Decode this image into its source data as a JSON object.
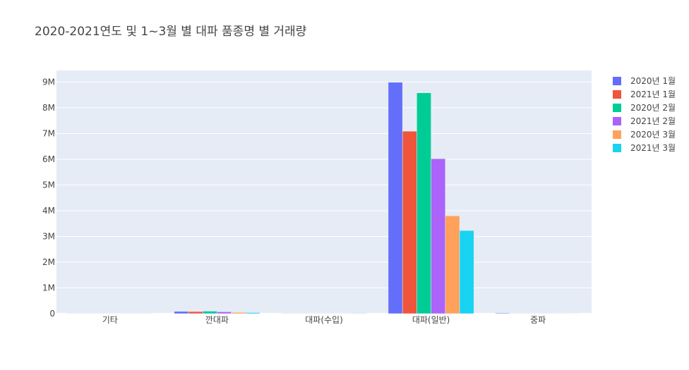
{
  "chart_data": {
    "type": "bar",
    "title": "2020-2021연도 및 1~3월 별 대파 품종명 별 거래량",
    "xlabel": "",
    "ylabel": "",
    "categories": [
      "기타",
      "깐대파",
      "대파(수입)",
      "대파(일반)",
      "중파"
    ],
    "ylim": [
      0,
      9450000
    ],
    "yticks": [
      0,
      1000000,
      2000000,
      3000000,
      4000000,
      5000000,
      6000000,
      7000000,
      8000000,
      9000000
    ],
    "ytick_labels": [
      "0",
      "1M",
      "2M",
      "3M",
      "4M",
      "5M",
      "6M",
      "7M",
      "8M",
      "9M"
    ],
    "grid": true,
    "legend_position": "right",
    "series": [
      {
        "name": "2020년 1월",
        "color": "#636efa",
        "values": [
          12000,
          85000,
          5000,
          8990000,
          25000
        ]
      },
      {
        "name": "2021년 1월",
        "color": "#ef553b",
        "values": [
          8000,
          80000,
          4000,
          7090000,
          5000
        ]
      },
      {
        "name": "2020년 2월",
        "color": "#00cc96",
        "values": [
          10000,
          95000,
          3000,
          8580000,
          6000
        ]
      },
      {
        "name": "2021년 2월",
        "color": "#ab63fa",
        "values": [
          6000,
          70000,
          2000,
          6020000,
          4000
        ]
      },
      {
        "name": "2020년 3월",
        "color": "#ffa15a",
        "values": [
          5000,
          45000,
          8000,
          3800000,
          3000
        ]
      },
      {
        "name": "2021년 3월",
        "color": "#19d3f3",
        "values": [
          4000,
          40000,
          15000,
          3230000,
          2000
        ]
      }
    ]
  }
}
